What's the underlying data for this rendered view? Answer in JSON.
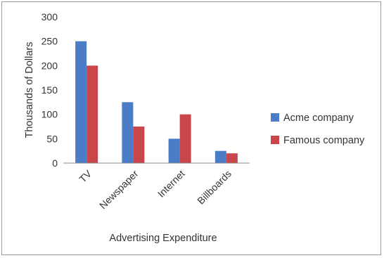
{
  "chart_data": {
    "type": "bar",
    "categories": [
      "TV",
      "Newspaper",
      "Internet",
      "Billboards"
    ],
    "series": [
      {
        "name": "Acme company",
        "values": [
          250,
          125,
          50,
          25
        ],
        "color": "#4a7cc7"
      },
      {
        "name": "Famous company",
        "values": [
          200,
          75,
          100,
          20
        ],
        "color": "#c9474a"
      }
    ],
    "title": "",
    "xlabel": "Advertising Expenditure",
    "ylabel": "Thousands of Dollars",
    "ylim": [
      0,
      300
    ],
    "yticks": [
      0,
      50,
      100,
      150,
      200,
      250,
      300
    ],
    "grid": false,
    "legend_position": "right"
  }
}
